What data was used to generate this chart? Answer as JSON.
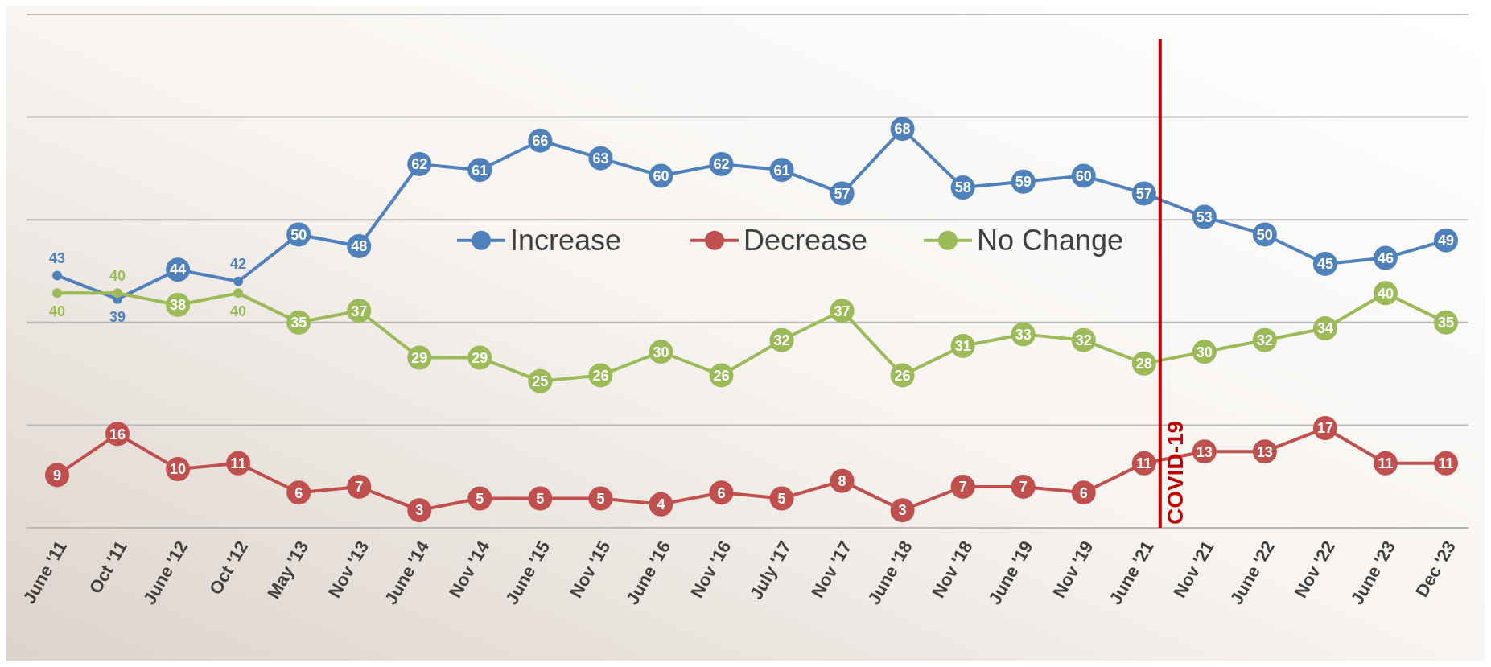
{
  "chart_data": {
    "type": "line",
    "categories": [
      "June '11",
      "Oct '11",
      "June '12",
      "Oct '12",
      "May '13",
      "Nov '13",
      "June '14",
      "Nov '14",
      "June '15",
      "Nov '15",
      "June '16",
      "Nov '16",
      "July '17",
      "Nov '17",
      "June '18",
      "Nov '18",
      "June '19",
      "Nov '19",
      "June '21",
      "Nov '21",
      "June '22",
      "Nov '22",
      "June '23",
      "Dec '23"
    ],
    "series": [
      {
        "name": "Increase",
        "color": "#4f81bd",
        "values": [
          43,
          39,
          44,
          42,
          50,
          48,
          62,
          61,
          66,
          63,
          60,
          62,
          61,
          57,
          68,
          58,
          59,
          60,
          57,
          53,
          50,
          45,
          46,
          49
        ]
      },
      {
        "name": "Decrease",
        "color": "#c0504d",
        "values": [
          9,
          16,
          10,
          11,
          6,
          7,
          3,
          5,
          5,
          5,
          4,
          6,
          5,
          8,
          3,
          7,
          7,
          6,
          11,
          13,
          13,
          17,
          11,
          11
        ]
      },
      {
        "name": "No Change",
        "color": "#9bbb59",
        "values": [
          40,
          40,
          38,
          40,
          35,
          37,
          29,
          29,
          25,
          26,
          30,
          26,
          32,
          37,
          26,
          31,
          33,
          32,
          28,
          30,
          32,
          34,
          40,
          35
        ]
      }
    ],
    "ylim": [
      0,
      87.5
    ],
    "yticks": [
      {
        "value": 0,
        "label": null
      },
      {
        "value": 17.5,
        "label": null
      },
      {
        "value": 35,
        "label": null
      },
      {
        "value": 52.5,
        "label": null
      },
      {
        "value": 70,
        "label": null
      },
      {
        "value": 87.5,
        "label": null
      }
    ],
    "tick_labels": "x",
    "grid": "y",
    "legend": "right",
    "marker": "circle",
    "line_style": "solid",
    "data_labels": true,
    "ref_lines": [
      {
        "axis": "x",
        "value": "June '21",
        "label": "COVID-19",
        "color": "#c00000"
      }
    ]
  }
}
